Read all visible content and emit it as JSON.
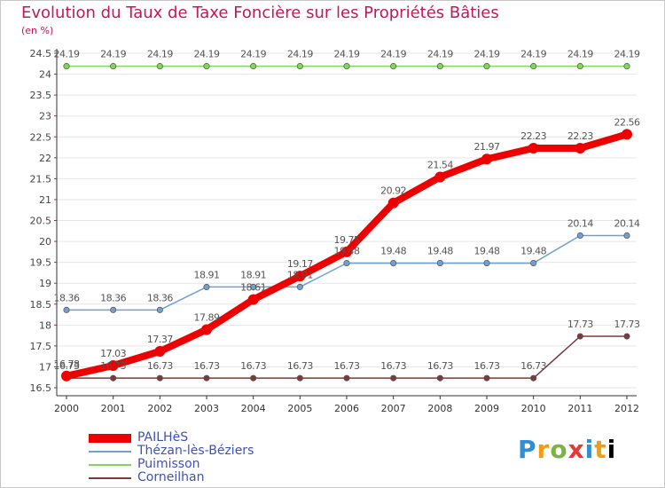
{
  "title": "Evolution du Taux de Taxe Foncière sur les Propriétés Bâties",
  "unit_label": "(en %)",
  "logo_text": "Proxiti",
  "chart_data": {
    "type": "line",
    "title": "Evolution du Taux de Taxe Foncière sur les Propriétés Bâties",
    "ylabel": "(en %)",
    "xlabel": "",
    "ylim": [
      16.5,
      24.5
    ],
    "yticks": [
      "16.5",
      "17",
      "17.5",
      "18",
      "18.5",
      "19",
      "19.5",
      "20",
      "20.5",
      "21",
      "21.5",
      "22",
      "22.5",
      "23",
      "23.5",
      "24",
      "24.5"
    ],
    "categories": [
      "2000",
      "2001",
      "2002",
      "2003",
      "2004",
      "2005",
      "2006",
      "2007",
      "2008",
      "2009",
      "2010",
      "2011",
      "2012"
    ],
    "series": [
      {
        "name": "PAILHèS",
        "color": "#ee0000",
        "values": [
          16.78,
          17.03,
          17.37,
          17.89,
          18.61,
          19.17,
          19.75,
          20.92,
          21.54,
          21.97,
          22.23,
          22.23,
          22.56
        ],
        "labels": [
          "16.78",
          "17.03",
          "17.37",
          "17.89",
          "18.61",
          "19.17",
          "19.75",
          "20.92",
          "21.54",
          "21.97",
          "22.23",
          "22.23",
          "22.56"
        ]
      },
      {
        "name": "Thézan-lès-Béziers",
        "color": "#6fa0d0",
        "values": [
          18.36,
          18.36,
          18.36,
          18.91,
          18.91,
          18.91,
          19.48,
          19.48,
          19.48,
          19.48,
          19.48,
          20.14,
          20.14
        ],
        "labels": [
          "18.36",
          "18.36",
          "18.36",
          "18.91",
          "18.91",
          "18.91",
          "19.48",
          "19.48",
          "19.48",
          "19.48",
          "19.48",
          "20.14",
          "20.14"
        ]
      },
      {
        "name": "Puimisson",
        "color": "#7ed957",
        "values": [
          24.19,
          24.19,
          24.19,
          24.19,
          24.19,
          24.19,
          24.19,
          24.19,
          24.19,
          24.19,
          24.19,
          24.19,
          24.19
        ],
        "labels": [
          "24.19",
          "24.19",
          "24.19",
          "24.19",
          "24.19",
          "24.19",
          "24.19",
          "24.19",
          "24.19",
          "24.19",
          "24.19",
          "24.19",
          "24.19"
        ]
      },
      {
        "name": "Corneilhan",
        "color": "#7b3b3b",
        "values": [
          16.73,
          16.73,
          16.73,
          16.73,
          16.73,
          16.73,
          16.73,
          16.73,
          16.73,
          16.73,
          16.73,
          17.73,
          17.73
        ],
        "labels": [
          "16.73",
          "16.73",
          "16.73",
          "16.73",
          "16.73",
          "16.73",
          "16.73",
          "16.73",
          "16.73",
          "16.73",
          "16.73",
          "17.73",
          "17.73"
        ]
      }
    ]
  }
}
